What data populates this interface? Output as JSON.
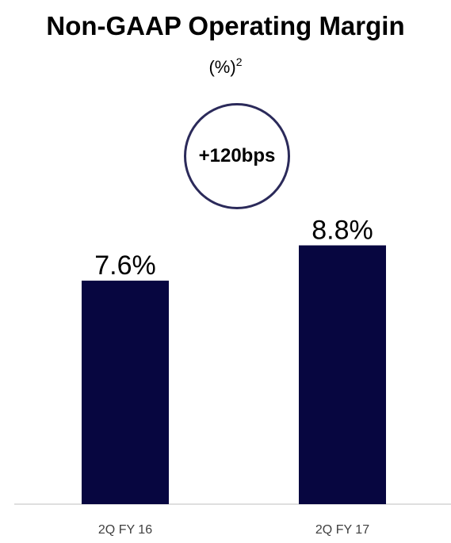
{
  "chart_data": {
    "type": "bar",
    "title": "Non-GAAP Operating Margin",
    "subtitle": "(%)",
    "subtitle_superscript": "2",
    "annotation": "+120bps",
    "categories": [
      "2Q FY 16",
      "2Q FY 17"
    ],
    "values": [
      7.6,
      8.8
    ],
    "value_labels": [
      "7.6%",
      "8.8%"
    ],
    "ylim": [
      0,
      13.1
    ],
    "grid": false,
    "legend": "none",
    "bar_color": "#070640",
    "axis_color": "#bfbfbf",
    "tick_label_color": "#404040",
    "badge_border_color": "#2b2a5a"
  }
}
